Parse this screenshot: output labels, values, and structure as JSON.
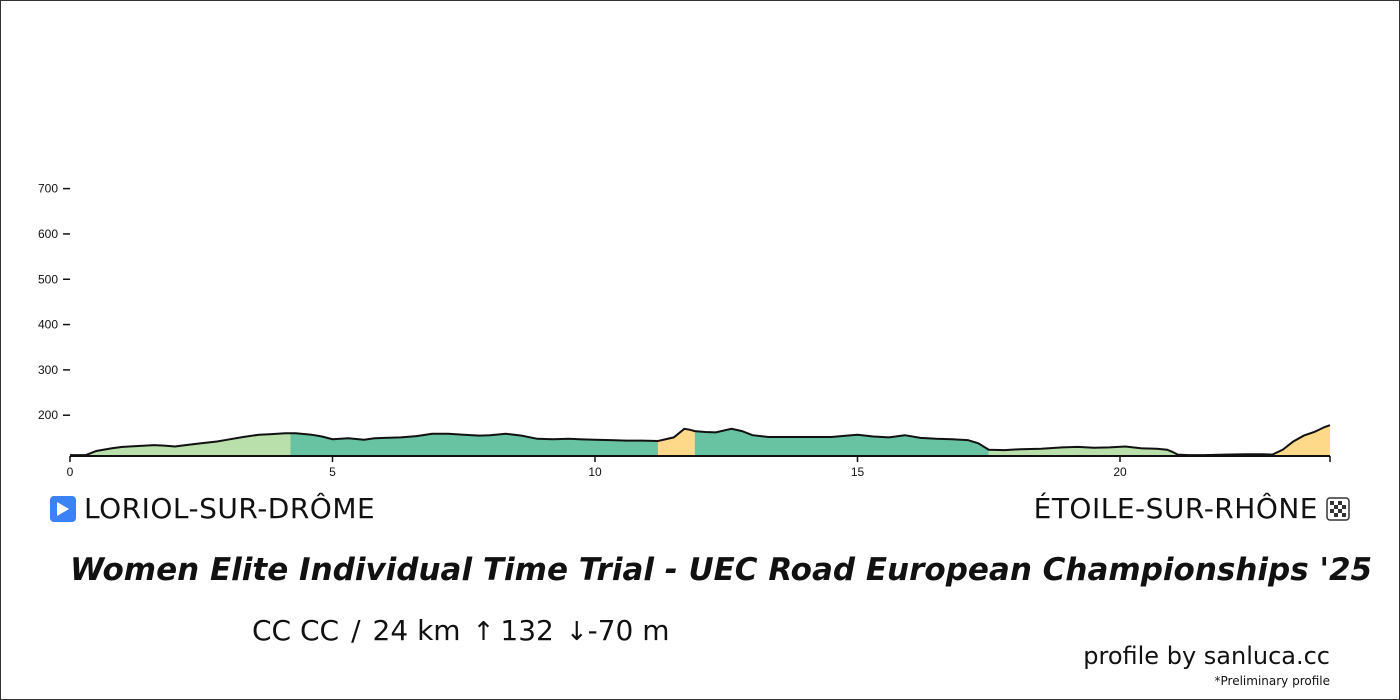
{
  "start_location": "LORIOL-SUR-DRÔME",
  "finish_location": "ÉTOILE-SUR-RHÔNE",
  "race_title": "Women Elite Individual Time Trial - UEC Road European Championships '25",
  "stats": {
    "location_code": "CC CC",
    "distance": "24 km",
    "ascent": "132",
    "descent": "-70 m",
    "ascent_icon": "up-arrow-icon",
    "descent_icon": "down-arrow-icon"
  },
  "credit": "profile by sanluca.cc",
  "note": "*Preliminary profile",
  "icons": {
    "start": "play-icon",
    "finish": "checkered-flag-icon"
  },
  "colors": {
    "start_icon": "#3b82f6",
    "flat": "#b9dfaa",
    "rolling": "#68c3a3",
    "climb": "#ffd98a",
    "outline": "#111111"
  },
  "chart_data": {
    "type": "area",
    "title": "",
    "xlabel": "",
    "ylabel": "",
    "xlim": [
      0,
      24
    ],
    "ylim": [
      110,
      720
    ],
    "x_ticks": [
      "0",
      "5",
      "10",
      "15",
      "20"
    ],
    "y_ticks": [
      "200",
      "300",
      "400",
      "500",
      "600",
      "700"
    ],
    "grid": false,
    "series": [
      {
        "x": [
          0,
          0.3,
          0.5,
          0.8,
          1.0,
          1.3,
          1.6,
          1.8,
          2.0,
          2.2,
          2.5,
          2.8,
          3.0,
          3.3,
          3.6,
          3.8,
          4.1,
          4.3,
          4.6,
          4.8,
          5.0,
          5.3,
          5.6,
          5.8,
          6.0,
          6.3,
          6.6,
          6.9,
          7.2,
          7.5,
          7.8,
          8.0,
          8.3,
          8.6,
          8.9,
          9.2,
          9.5,
          9.7,
          10.0,
          10.3,
          10.6,
          10.9,
          11.2,
          11.5,
          11.7,
          11.8,
          11.9,
          12.1,
          12.3,
          12.6,
          12.8,
          13.0,
          13.3,
          13.6,
          13.9,
          14.2,
          14.5,
          14.8,
          15.0,
          15.3,
          15.6,
          15.9,
          16.2,
          16.5,
          16.8,
          17.1,
          17.3,
          17.5,
          17.8,
          18.1,
          18.5,
          18.9,
          19.2,
          19.5,
          19.8,
          20.1,
          20.4,
          20.7,
          20.9,
          21.0,
          21.1,
          21.3,
          21.6,
          22.0,
          22.4,
          22.7,
          22.9,
          23.1,
          23.3,
          23.5,
          23.7,
          23.9,
          24.0
        ],
        "y": [
          112,
          112,
          121,
          127,
          130,
          132,
          134,
          133,
          131,
          134,
          138,
          142,
          146,
          152,
          157,
          158,
          160,
          160,
          157,
          153,
          147,
          149,
          146,
          149,
          150,
          151,
          154,
          159,
          159,
          157,
          155,
          156,
          159,
          155,
          148,
          147,
          148,
          147,
          146,
          145,
          144,
          144,
          143,
          151,
          170,
          168,
          165,
          163,
          162,
          170,
          165,
          156,
          152,
          152,
          152,
          152,
          152,
          155,
          157,
          153,
          151,
          156,
          150,
          148,
          147,
          145,
          138,
          124,
          123,
          125,
          126,
          129,
          130,
          128,
          129,
          131,
          127,
          126,
          124,
          119,
          113,
          112,
          112,
          113,
          114,
          114,
          113,
          124,
          142,
          155,
          163,
          174,
          178
        ]
      }
    ],
    "segments": [
      {
        "from": 0,
        "to": 4.2,
        "category": "flat"
      },
      {
        "from": 4.2,
        "to": 11.2,
        "category": "rolling"
      },
      {
        "from": 11.2,
        "to": 11.9,
        "category": "climb"
      },
      {
        "from": 11.9,
        "to": 17.5,
        "category": "rolling"
      },
      {
        "from": 17.5,
        "to": 21.2,
        "category": "flat"
      },
      {
        "from": 21.2,
        "to": 22.7,
        "category": "flat"
      },
      {
        "from": 22.7,
        "to": 24.0,
        "category": "climb"
      }
    ]
  }
}
